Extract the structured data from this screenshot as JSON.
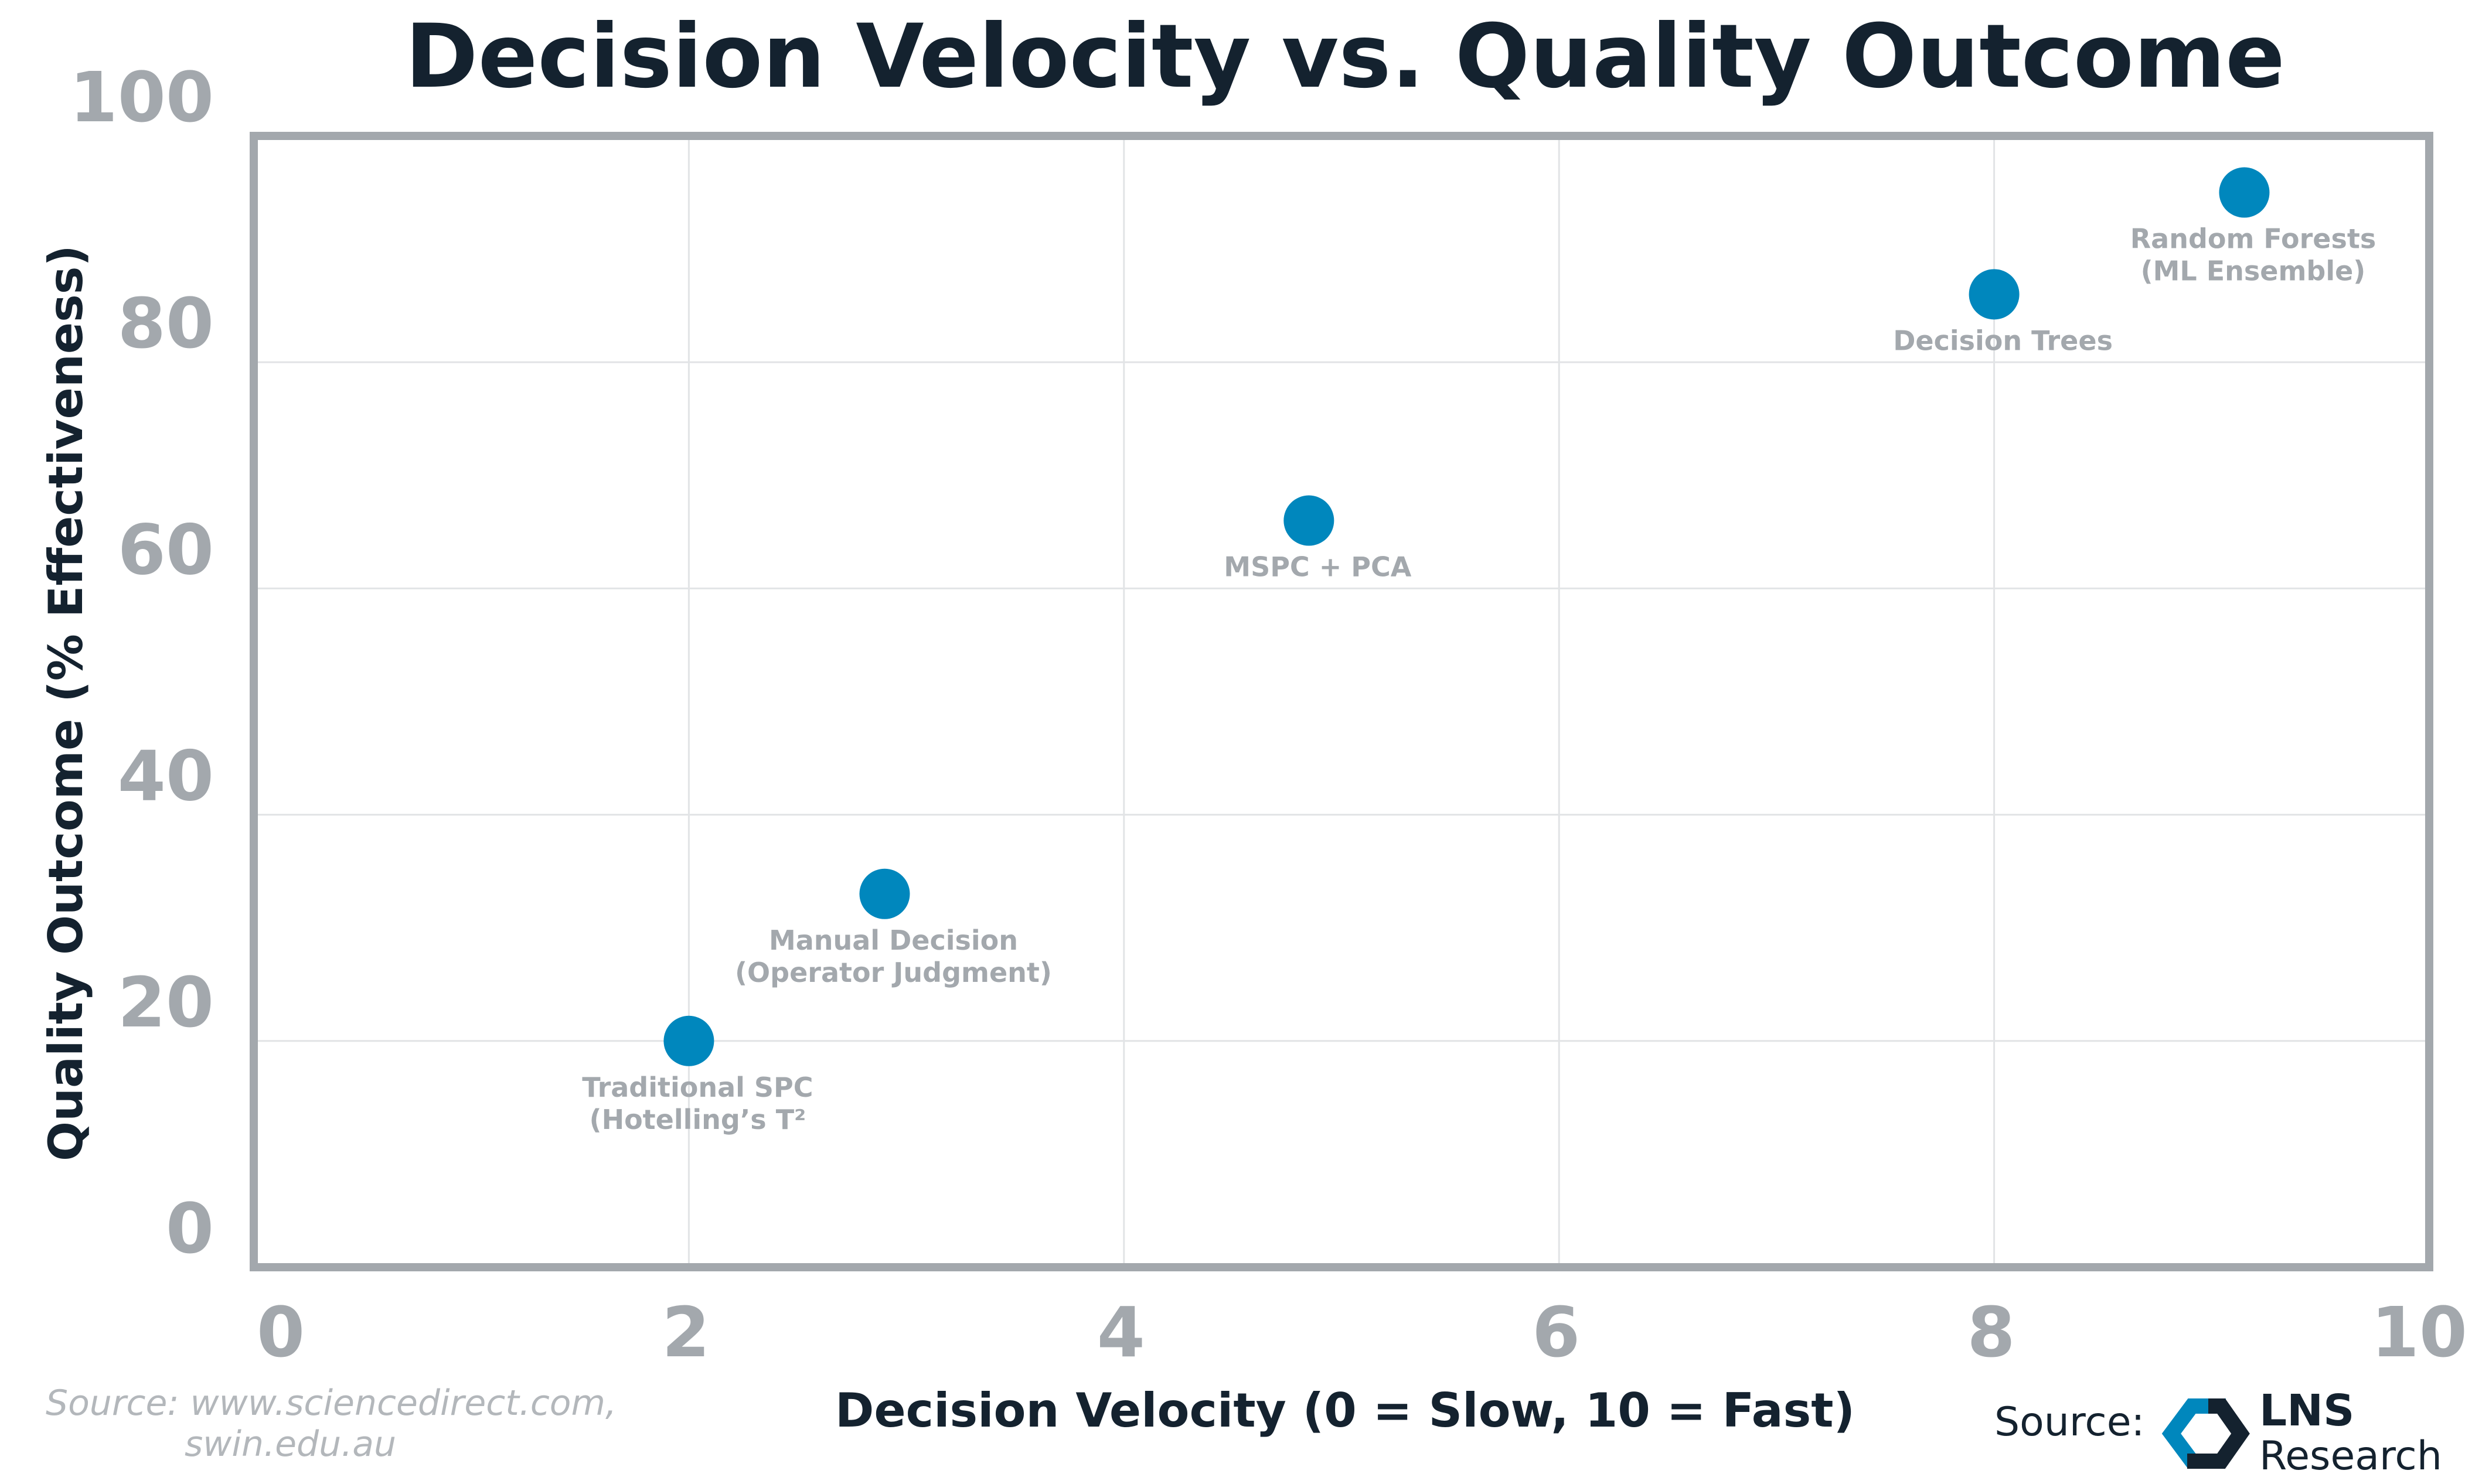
{
  "chart_data": {
    "type": "scatter",
    "title": "Decision Velocity vs. Quality Outcome",
    "xlabel": "Decision Velocity (0 = Slow, 10 = Fast)",
    "ylabel": "Quality Outcome (% Effectiveness)",
    "xlim": [
      0,
      10
    ],
    "ylim": [
      0,
      100
    ],
    "xticks": [
      "0",
      "2",
      "4",
      "6",
      "8",
      "10"
    ],
    "yticks": [
      "0",
      "20",
      "40",
      "60",
      "80",
      "100"
    ],
    "grid": true,
    "points": [
      {
        "x": 2.0,
        "y": 20,
        "label_lines": [
          "Traditional SPC",
          "(Hotelling’s T²"
        ]
      },
      {
        "x": 2.9,
        "y": 33,
        "label_lines": [
          "Manual Decision",
          "(Operator Judgment)"
        ]
      },
      {
        "x": 4.85,
        "y": 66,
        "label_lines": [
          "MSPC + PCA"
        ]
      },
      {
        "x": 8.0,
        "y": 86,
        "label_lines": [
          "Decision Trees"
        ]
      },
      {
        "x": 9.15,
        "y": 95,
        "label_lines": [
          "Random Forests",
          "(ML Ensemble)"
        ]
      }
    ]
  },
  "colors": {
    "point": "#0087bd",
    "axes": "#a3a8ad",
    "grid": "#e2e4e6",
    "title": "#14222f",
    "logo_accent": "#0087bd",
    "logo_dark": "#14222f"
  },
  "source_left": [
    "Source: www.sciencedirect.com,",
    "swin.edu.au"
  ],
  "source_right": "Source:",
  "logo": {
    "line1": "LNS",
    "line2": "Research"
  }
}
